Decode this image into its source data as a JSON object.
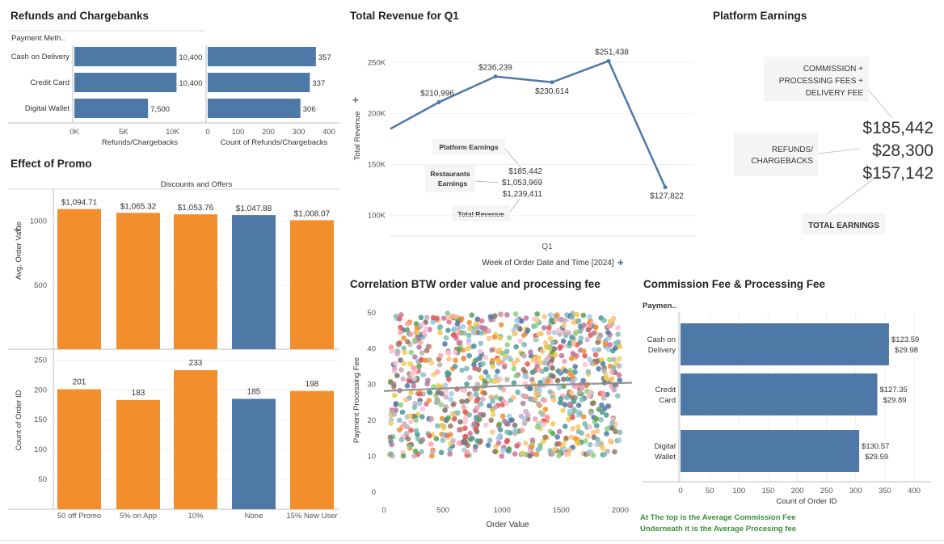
{
  "colors": {
    "blue": "#4e79a7",
    "orange": "#f28e2b",
    "grid": "#e6e6e6",
    "axis": "#bdbdbd",
    "text": "#333333",
    "green": "#3a8f3a"
  },
  "refunds": {
    "title": "Refunds and Chargebanks",
    "row_header": "Payment Meth..",
    "categories": [
      "Cash on Delivery",
      "Credit Card",
      "Digital Wallet"
    ],
    "left_xlabel": "Refunds/Chargebacks",
    "left_ticks": [
      "0K",
      "5K",
      "10K"
    ],
    "right_xlabel": "Count of Refunds/Chargebacks",
    "right_ticks": [
      "0",
      "100",
      "200",
      "300",
      "400"
    ]
  },
  "revenue": {
    "title": "Total Revenue for Q1",
    "ylabel": "Total Revenue",
    "xlabel": "Week of Order Date and Time [2024]",
    "xtick": "Q1",
    "ytick_labels": [
      "100K",
      "150K",
      "200K",
      "250K"
    ],
    "annotation": {
      "labels": [
        "Platform Earnings",
        "Restaurants Earnings",
        "Total Revenue"
      ],
      "values": [
        "$185,442",
        "$1,053,969",
        "$1,239,411"
      ]
    }
  },
  "platform": {
    "title": "Platform Earnings",
    "commission_label": "COMMISSION + PROCESSING FEES + DELIVERY FEE",
    "refunds_label": "REFUNDS/ CHARGEBACKS",
    "total_label": "TOTAL EARNINGS",
    "values": [
      "$185,442",
      "$28,300",
      "$157,142"
    ]
  },
  "promo": {
    "title": "Effect of Promo",
    "header": "Discounts and Offers",
    "top_ylabel": "Avg. Order Value",
    "bottom_ylabel": "Count of Order ID",
    "top_ticks": [
      "500",
      "1000"
    ],
    "bottom_ticks": [
      "50",
      "100",
      "150",
      "200",
      "250"
    ]
  },
  "scatter": {
    "title": "Correlation BTW order value and processing fee",
    "xlabel": "Order Value",
    "ylabel": "Payment Processing Fee",
    "xticks": [
      "0",
      "500",
      "1000",
      "1500",
      "2000"
    ],
    "yticks": [
      "0",
      "10",
      "20",
      "30",
      "40",
      "50"
    ]
  },
  "commission": {
    "title": "Commission Fee & Processing Fee",
    "row_header": "Paymen..",
    "xlabel": "Count of Order ID",
    "xticks": [
      "0",
      "50",
      "100",
      "150",
      "200",
      "250",
      "300",
      "350",
      "400"
    ],
    "note_line1": "At The top is the Average Commission Fee",
    "note_line2": "Underneath it is the Average Procesing fee"
  },
  "chart_data": [
    {
      "type": "bar",
      "title": "Refunds and Chargebanks",
      "categories": [
        "Cash on Delivery",
        "Credit Card",
        "Digital Wallet"
      ],
      "series": [
        {
          "name": "Refunds/Chargebacks",
          "values": [
            10400,
            10400,
            7500
          ],
          "labels": [
            "10,400",
            "10,400",
            "7,500"
          ]
        },
        {
          "name": "Count of Refunds/Chargebacks",
          "values": [
            357,
            337,
            306
          ],
          "labels": [
            "357",
            "337",
            "306"
          ]
        }
      ],
      "xlim_left": [
        0,
        13000
      ],
      "xlim_right": [
        0,
        400
      ]
    },
    {
      "type": "line",
      "title": "Total Revenue for Q1",
      "xlabel": "Week of Order Date and Time [2024]",
      "ylabel": "Total Revenue",
      "ylim": [
        80000,
        270000
      ],
      "values": [
        185000,
        210996,
        236239,
        230614,
        251438,
        127822
      ],
      "labels": [
        "",
        "$210,996",
        "$236,239",
        "$230,614",
        "$251,438",
        "$127,822"
      ]
    },
    {
      "type": "bar",
      "title": "Effect of Promo",
      "categories": [
        "50 off Promo",
        "5% on App",
        "10%",
        "None",
        "15% New User"
      ],
      "series": [
        {
          "name": "Avg. Order Value",
          "values": [
            1094.71,
            1065.32,
            1053.76,
            1047.88,
            1008.07
          ],
          "labels": [
            "$1,094.71",
            "$1,065.32",
            "$1,053.76",
            "$1,047.88",
            "$1,008.07"
          ]
        },
        {
          "name": "Count of Order ID",
          "values": [
            201,
            183,
            233,
            185,
            198
          ],
          "labels": [
            "201",
            "183",
            "233",
            "185",
            "198"
          ]
        }
      ],
      "highlight": "None",
      "ylim_top": [
        0,
        1200
      ],
      "ylim_bottom": [
        0,
        260
      ]
    },
    {
      "type": "scatter",
      "title": "Correlation BTW order value and processing fee",
      "xlabel": "Order Value",
      "ylabel": "Payment Processing Fee",
      "xlim": [
        0,
        2100
      ],
      "ylim": [
        0,
        52
      ],
      "x_range": [
        50,
        2000
      ],
      "y_range": [
        10,
        50
      ],
      "point_count": 1000,
      "trend": [
        [
          0,
          28.2
        ],
        [
          1000,
          29.6
        ],
        [
          2100,
          30.5
        ]
      ]
    },
    {
      "type": "bar",
      "title": "Commission Fee & Processing Fee",
      "xlabel": "Count of Order ID",
      "categories": [
        "Cash on Delivery",
        "Credit Card",
        "Digital Wallet"
      ],
      "category_lines": [
        [
          "Cash on",
          "Delivery"
        ],
        [
          "Credit",
          "Card"
        ],
        [
          "Digital",
          "Wallet"
        ]
      ],
      "values": [
        357,
        337,
        306
      ],
      "avg_commission": [
        "$123.59",
        "$127.35",
        "$130.57"
      ],
      "avg_processing": [
        "$29.98",
        "$29.89",
        "$29.59"
      ],
      "xlim": [
        0,
        420
      ]
    }
  ]
}
